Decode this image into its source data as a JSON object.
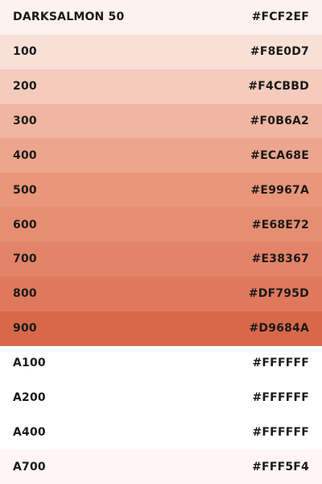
{
  "palette": {
    "name": "DARKSALMON",
    "swatches": [
      {
        "label": "DARKSALMON 50",
        "hex": "#FCF2EF",
        "color": "#FCF2EF"
      },
      {
        "label": "100",
        "hex": "#F8E0D7",
        "color": "#F8E0D7"
      },
      {
        "label": "200",
        "hex": "#F4CBBD",
        "color": "#F4CBBD"
      },
      {
        "label": "300",
        "hex": "#F0B6A2",
        "color": "#F0B6A2"
      },
      {
        "label": "400",
        "hex": "#ECA68E",
        "color": "#ECA68E"
      },
      {
        "label": "500",
        "hex": "#E9967A",
        "color": "#E9967A"
      },
      {
        "label": "600",
        "hex": "#E68E72",
        "color": "#E68E72"
      },
      {
        "label": "700",
        "hex": "#E38367",
        "color": "#E38367"
      },
      {
        "label": "800",
        "hex": "#DF795D",
        "color": "#DF795D"
      },
      {
        "label": "900",
        "hex": "#D9684A",
        "color": "#D9684A"
      },
      {
        "label": "A100",
        "hex": "#FFFFFF",
        "color": "#FFFFFF"
      },
      {
        "label": "A200",
        "hex": "#FFFFFF",
        "color": "#FFFFFF"
      },
      {
        "label": "A400",
        "hex": "#FFFFFF",
        "color": "#FFFFFF"
      },
      {
        "label": "A700",
        "hex": "#FFF5F4",
        "color": "#FFF5F4"
      }
    ]
  }
}
